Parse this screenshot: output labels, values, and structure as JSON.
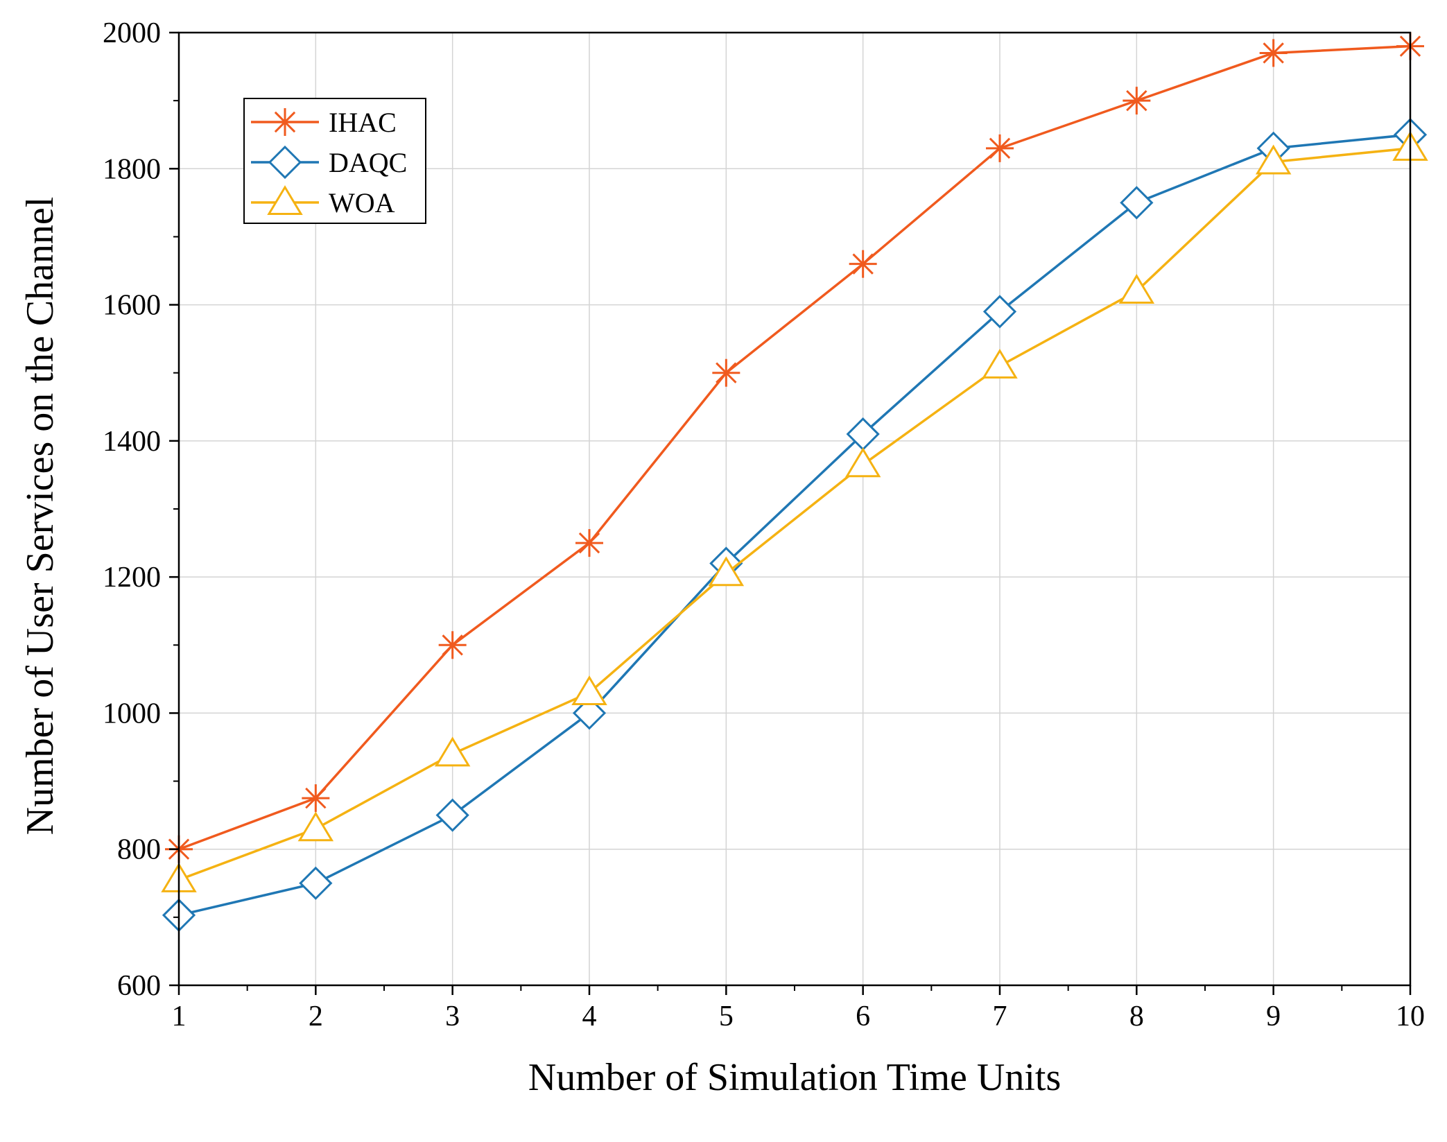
{
  "chart_data": {
    "type": "line",
    "title": "",
    "xlabel": "Number of Simulation Time Units",
    "ylabel": "Number of User Services on the Channel",
    "x": [
      1,
      2,
      3,
      4,
      5,
      6,
      7,
      8,
      9,
      10
    ],
    "xticks": [
      "1",
      "2",
      "3",
      "4",
      "5",
      "6",
      "7",
      "8",
      "9",
      "10"
    ],
    "yticks": [
      "600",
      "800",
      "1000",
      "1200",
      "1400",
      "1600",
      "1800",
      "2000"
    ],
    "xlim": [
      1,
      10
    ],
    "ylim": [
      600,
      2000
    ],
    "grid": true,
    "legend_position": "top-left",
    "series": [
      {
        "name": "IHAC",
        "marker": "asterisk",
        "color": "#f05a1e",
        "values": [
          800,
          875,
          1100,
          1250,
          1500,
          1660,
          1830,
          1900,
          1970,
          1980
        ]
      },
      {
        "name": "DAQC",
        "marker": "diamond",
        "color": "#1f77b4",
        "values": [
          703,
          750,
          850,
          1000,
          1220,
          1410,
          1590,
          1750,
          1830,
          1850
        ]
      },
      {
        "name": "WOA",
        "marker": "triangle",
        "color": "#f5b212",
        "values": [
          755,
          830,
          940,
          1030,
          1205,
          1365,
          1510,
          1620,
          1810,
          1830
        ]
      }
    ]
  }
}
